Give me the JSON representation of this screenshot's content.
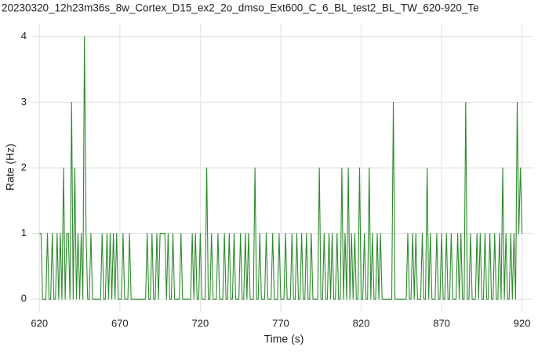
{
  "chart_data": {
    "type": "line",
    "title": "20230320_12h23m36s_8w_Cortex_D15_ex2_2o_dmso_Ext600_C_6_BL_test2_BL_TW_620-920_Te",
    "x_label": "Time (s)",
    "y_label": "Rate (Hz)",
    "x": [
      620,
      621,
      622,
      623,
      624,
      625,
      626,
      627,
      628,
      629,
      630,
      631,
      632,
      633,
      634,
      635,
      636,
      637,
      638,
      639,
      640,
      641,
      642,
      643,
      644,
      645,
      646,
      647,
      648,
      649,
      650,
      651,
      652,
      653,
      654,
      655,
      656,
      657,
      658,
      659,
      660,
      661,
      662,
      663,
      664,
      665,
      666,
      667,
      668,
      669,
      670,
      671,
      672,
      673,
      674,
      675,
      676,
      677,
      678,
      679,
      680,
      681,
      682,
      683,
      684,
      685,
      686,
      687,
      688,
      689,
      690,
      691,
      692,
      693,
      694,
      695,
      696,
      697,
      698,
      699,
      700,
      701,
      702,
      703,
      704,
      705,
      706,
      707,
      708,
      709,
      710,
      711,
      712,
      713,
      714,
      715,
      716,
      717,
      718,
      719,
      720,
      721,
      722,
      723,
      724,
      725,
      726,
      727,
      728,
      729,
      730,
      731,
      732,
      733,
      734,
      735,
      736,
      737,
      738,
      739,
      740,
      741,
      742,
      743,
      744,
      745,
      746,
      747,
      748,
      749,
      750,
      751,
      752,
      753,
      754,
      755,
      756,
      757,
      758,
      759,
      760,
      761,
      762,
      763,
      764,
      765,
      766,
      767,
      768,
      769,
      770,
      771,
      772,
      773,
      774,
      775,
      776,
      777,
      778,
      779,
      780,
      781,
      782,
      783,
      784,
      785,
      786,
      787,
      788,
      789,
      790,
      791,
      792,
      793,
      794,
      795,
      796,
      797,
      798,
      799,
      800,
      801,
      802,
      803,
      804,
      805,
      806,
      807,
      808,
      809,
      810,
      811,
      812,
      813,
      814,
      815,
      816,
      817,
      818,
      819,
      820,
      821,
      822,
      823,
      824,
      825,
      826,
      827,
      828,
      829,
      830,
      831,
      832,
      833,
      834,
      835,
      836,
      837,
      838,
      839,
      840,
      841,
      842,
      843,
      844,
      845,
      846,
      847,
      848,
      849,
      850,
      851,
      852,
      853,
      854,
      855,
      856,
      857,
      858,
      859,
      860,
      861,
      862,
      863,
      864,
      865,
      866,
      867,
      868,
      869,
      870,
      871,
      872,
      873,
      874,
      875,
      876,
      877,
      878,
      879,
      880,
      881,
      882,
      883,
      884,
      885,
      886,
      887,
      888,
      889,
      890,
      891,
      892,
      893,
      894,
      895,
      896,
      897,
      898,
      899,
      900,
      901,
      902,
      903,
      904,
      905,
      906,
      907,
      908,
      909,
      910,
      911,
      912,
      913,
      914,
      915,
      916,
      917,
      918,
      919,
      920
    ],
    "series": [
      {
        "name": "Rate",
        "color": "#2e8b2e",
        "values": [
          1,
          1,
          0,
          0,
          0,
          1,
          0,
          0,
          1,
          0,
          0,
          1,
          0,
          1,
          0,
          2,
          0,
          1,
          1,
          0,
          3,
          0,
          2,
          0,
          1,
          0,
          1,
          0,
          4,
          1,
          0,
          0,
          1,
          0,
          0,
          0,
          0,
          0,
          0,
          1,
          0,
          0,
          1,
          0,
          1,
          0,
          1,
          0,
          1,
          0,
          0,
          0,
          1,
          0,
          0,
          0,
          1,
          0,
          0,
          0,
          0,
          0,
          0,
          0,
          0,
          0,
          0,
          1,
          0,
          0,
          1,
          0,
          0,
          1,
          0,
          1,
          1,
          1,
          1,
          0,
          1,
          0,
          0,
          1,
          0,
          0,
          0,
          0,
          1,
          0,
          0,
          0,
          0,
          0,
          0,
          1,
          0,
          1,
          0,
          0,
          1,
          0,
          0,
          0,
          2,
          0,
          0,
          1,
          0,
          0,
          0,
          1,
          0,
          0,
          0,
          1,
          0,
          0,
          1,
          0,
          0,
          1,
          0,
          0,
          0,
          1,
          0,
          0,
          1,
          0,
          1,
          0,
          0,
          0,
          2,
          0,
          0,
          1,
          0,
          0,
          0,
          1,
          0,
          0,
          0,
          1,
          0,
          0,
          0,
          1,
          0,
          0,
          0,
          1,
          0,
          0,
          0,
          1,
          0,
          0,
          1,
          0,
          0,
          1,
          0,
          0,
          1,
          0,
          0,
          1,
          0,
          0,
          0,
          0,
          2,
          0,
          0,
          1,
          0,
          0,
          1,
          0,
          1,
          0,
          0,
          1,
          0,
          0,
          2,
          0,
          1,
          0,
          2,
          0,
          1,
          0,
          1,
          0,
          0,
          2,
          0,
          0,
          1,
          0,
          0,
          2,
          0,
          1,
          0,
          0,
          1,
          0,
          1,
          0,
          0,
          0,
          0,
          0,
          0,
          0,
          3,
          0,
          0,
          0,
          0,
          0,
          0,
          0,
          0,
          1,
          0,
          0,
          1,
          0,
          1,
          0,
          0,
          0,
          1,
          0,
          0,
          2,
          0,
          1,
          0,
          0,
          0,
          1,
          0,
          0,
          1,
          0,
          0,
          1,
          0,
          0,
          1,
          0,
          0,
          0,
          1,
          0,
          1,
          0,
          0,
          3,
          0,
          0,
          1,
          0,
          0,
          0,
          1,
          0,
          1,
          0,
          0,
          1,
          0,
          0,
          1,
          0,
          0,
          1,
          0,
          0,
          1,
          0,
          2,
          0,
          1,
          0,
          0,
          1,
          0,
          1,
          0,
          3,
          1,
          2,
          1
        ]
      }
    ],
    "xlim": [
      615,
      927
    ],
    "ylim": [
      -0.2,
      4.2
    ],
    "xticks": [
      620,
      670,
      720,
      770,
      820,
      870,
      920
    ],
    "yticks": [
      0,
      1,
      2,
      3,
      4
    ],
    "grid": true
  }
}
